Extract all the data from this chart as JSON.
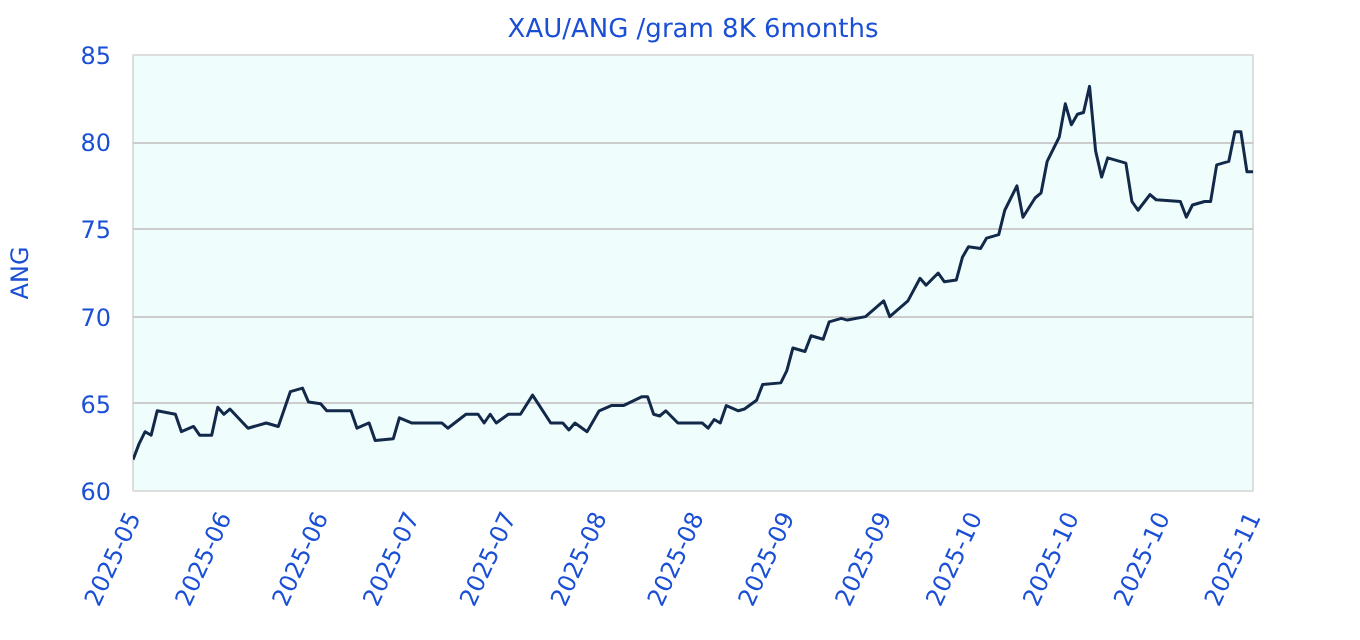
{
  "chart_data": {
    "type": "line",
    "title": "XAU/ANG /gram 8K 6months",
    "ylabel": "ANG",
    "x": [
      "2025-05-01",
      "2025-05-02",
      "2025-05-03",
      "2025-05-04",
      "2025-05-05",
      "2025-05-08",
      "2025-05-09",
      "2025-05-11",
      "2025-05-12",
      "2025-05-14",
      "2025-05-15",
      "2025-05-16",
      "2025-05-17",
      "2025-05-20",
      "2025-05-23",
      "2025-05-25",
      "2025-05-27",
      "2025-05-29",
      "2025-05-30",
      "2025-06-01",
      "2025-06-02",
      "2025-06-06",
      "2025-06-07",
      "2025-06-09",
      "2025-06-10",
      "2025-06-13",
      "2025-06-14",
      "2025-06-16",
      "2025-06-21",
      "2025-06-22",
      "2025-06-25",
      "2025-06-27",
      "2025-06-28",
      "2025-06-29",
      "2025-06-30",
      "2025-07-02",
      "2025-07-04",
      "2025-07-06",
      "2025-07-09",
      "2025-07-11",
      "2025-07-12",
      "2025-07-13",
      "2025-07-15",
      "2025-07-17",
      "2025-07-19",
      "2025-07-21",
      "2025-07-24",
      "2025-07-25",
      "2025-07-26",
      "2025-07-27",
      "2025-07-28",
      "2025-07-30",
      "2025-08-03",
      "2025-08-04",
      "2025-08-05",
      "2025-08-06",
      "2025-08-07",
      "2025-08-09",
      "2025-08-10",
      "2025-08-12",
      "2025-08-13",
      "2025-08-16",
      "2025-08-17",
      "2025-08-18",
      "2025-08-20",
      "2025-08-21",
      "2025-08-23",
      "2025-08-24",
      "2025-08-26",
      "2025-08-27",
      "2025-08-30",
      "2025-09-02",
      "2025-09-03",
      "2025-09-06",
      "2025-09-08",
      "2025-09-09",
      "2025-09-11",
      "2025-09-12",
      "2025-09-14",
      "2025-09-15",
      "2025-09-16",
      "2025-09-18",
      "2025-09-19",
      "2025-09-21",
      "2025-09-22",
      "2025-09-24",
      "2025-09-25",
      "2025-09-27",
      "2025-09-28",
      "2025-09-29",
      "2025-10-01",
      "2025-10-02",
      "2025-10-03",
      "2025-10-04",
      "2025-10-05",
      "2025-10-06",
      "2025-10-07",
      "2025-10-08",
      "2025-10-09",
      "2025-10-11",
      "2025-10-12",
      "2025-10-13",
      "2025-10-14",
      "2025-10-16",
      "2025-10-17",
      "2025-10-21",
      "2025-10-22",
      "2025-10-23",
      "2025-10-25",
      "2025-10-26",
      "2025-10-27",
      "2025-10-29",
      "2025-10-30",
      "2025-10-31",
      "2025-11-01",
      "2025-11-02"
    ],
    "series": [
      {
        "color": "#12294a",
        "values": [
          61.8,
          62.7,
          63.4,
          63.2,
          64.6,
          64.4,
          63.4,
          63.7,
          63.2,
          63.2,
          64.8,
          64.4,
          64.7,
          63.6,
          63.9,
          63.7,
          65.7,
          65.9,
          65.1,
          65.0,
          64.6,
          64.6,
          63.6,
          63.9,
          62.9,
          63.0,
          64.2,
          63.9,
          63.9,
          63.6,
          64.4,
          64.4,
          63.9,
          64.4,
          63.9,
          64.4,
          64.4,
          65.5,
          63.9,
          63.9,
          63.5,
          63.9,
          63.4,
          64.6,
          64.9,
          64.9,
          65.4,
          65.4,
          64.4,
          64.3,
          64.6,
          63.9,
          63.9,
          63.6,
          64.1,
          63.9,
          64.9,
          64.6,
          64.7,
          65.2,
          66.1,
          66.2,
          66.9,
          68.2,
          68.0,
          68.9,
          68.7,
          69.7,
          69.9,
          69.8,
          70.0,
          70.9,
          70.0,
          70.9,
          72.2,
          71.8,
          72.5,
          72.0,
          72.1,
          73.4,
          74.0,
          73.9,
          74.5,
          74.7,
          76.1,
          77.5,
          75.7,
          76.8,
          77.1,
          78.9,
          80.3,
          82.2,
          81.0,
          81.6,
          81.7,
          83.2,
          79.5,
          78.0,
          79.1,
          78.9,
          78.8,
          76.6,
          76.1,
          77.0,
          76.7,
          76.6,
          75.7,
          76.4,
          76.6,
          76.6,
          78.7,
          78.9,
          80.6,
          80.6,
          78.3,
          78.3
        ]
      }
    ],
    "xlim": [
      "2025-05-01",
      "2025-11-02"
    ],
    "xticks": [
      {
        "value": "2025-05-01",
        "label": "2025-05"
      },
      {
        "value": "2025-05-16",
        "label": "2025-06"
      },
      {
        "value": "2025-06-01",
        "label": "2025-06"
      },
      {
        "value": "2025-06-16",
        "label": "2025-07"
      },
      {
        "value": "2025-07-02",
        "label": "2025-07"
      },
      {
        "value": "2025-07-17",
        "label": "2025-08"
      },
      {
        "value": "2025-08-02",
        "label": "2025-08"
      },
      {
        "value": "2025-08-17",
        "label": "2025-09"
      },
      {
        "value": "2025-09-02",
        "label": "2025-09"
      },
      {
        "value": "2025-09-17",
        "label": "2025-10"
      },
      {
        "value": "2025-10-03",
        "label": "2025-10"
      },
      {
        "value": "2025-10-18",
        "label": "2025-10"
      },
      {
        "value": "2025-11-02",
        "label": "2025-11"
      }
    ],
    "ylim": [
      60,
      85
    ],
    "yticks": [
      60,
      65,
      70,
      75,
      80,
      85
    ],
    "grid": "y",
    "marker": "none",
    "line_style": "solid"
  }
}
